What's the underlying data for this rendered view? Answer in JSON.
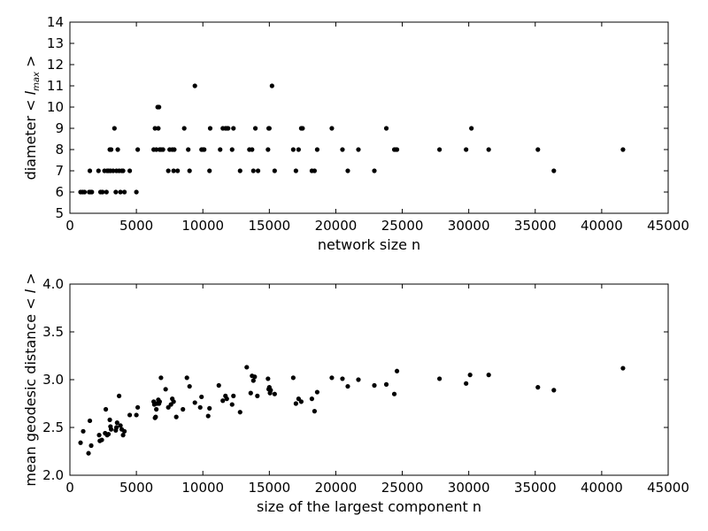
{
  "chart_data": [
    {
      "type": "scatter",
      "xlabel": "network size n",
      "ylabel_prefix": "diameter",
      "ylabel_symbol": "< l",
      "ylabel_subscript": "max",
      "ylabel_suffix": " >",
      "xlim": [
        0,
        45000
      ],
      "ylim": [
        5,
        14
      ],
      "xticks": [
        0,
        5000,
        10000,
        15000,
        20000,
        25000,
        30000,
        35000,
        40000,
        45000
      ],
      "yticks": [
        5,
        6,
        7,
        8,
        9,
        10,
        11,
        12,
        13,
        14
      ],
      "ytick_decimals": 0,
      "grid": false,
      "series": [
        {
          "color": "#000000",
          "points": [
            [
              800,
              6
            ],
            [
              950,
              6
            ],
            [
              1100,
              6
            ],
            [
              1450,
              6
            ],
            [
              1550,
              6
            ],
            [
              1650,
              6
            ],
            [
              1500,
              7
            ],
            [
              2150,
              7
            ],
            [
              2300,
              6
            ],
            [
              2450,
              6
            ],
            [
              2600,
              7
            ],
            [
              2750,
              6
            ],
            [
              2800,
              7
            ],
            [
              2900,
              7
            ],
            [
              3000,
              8
            ],
            [
              3050,
              7
            ],
            [
              3100,
              8
            ],
            [
              3250,
              7
            ],
            [
              3350,
              9
            ],
            [
              3450,
              6
            ],
            [
              3500,
              7
            ],
            [
              3600,
              8
            ],
            [
              3700,
              7
            ],
            [
              3800,
              6
            ],
            [
              3900,
              7
            ],
            [
              4000,
              7
            ],
            [
              4100,
              6
            ],
            [
              4500,
              7
            ],
            [
              5000,
              6
            ],
            [
              5100,
              8
            ],
            [
              6300,
              8
            ],
            [
              6400,
              9
            ],
            [
              6500,
              8
            ],
            [
              6600,
              10
            ],
            [
              6650,
              9
            ],
            [
              6700,
              10
            ],
            [
              6750,
              8
            ],
            [
              6850,
              8
            ],
            [
              7000,
              8
            ],
            [
              7400,
              7
            ],
            [
              7500,
              8
            ],
            [
              7700,
              8
            ],
            [
              7800,
              7
            ],
            [
              7850,
              8
            ],
            [
              8100,
              7
            ],
            [
              8600,
              9
            ],
            [
              8900,
              8
            ],
            [
              9000,
              7
            ],
            [
              9400,
              11
            ],
            [
              9900,
              8
            ],
            [
              10000,
              8
            ],
            [
              10100,
              8
            ],
            [
              10500,
              7
            ],
            [
              10550,
              9
            ],
            [
              11300,
              8
            ],
            [
              11500,
              9
            ],
            [
              11700,
              9
            ],
            [
              11800,
              9
            ],
            [
              11900,
              9
            ],
            [
              12200,
              8
            ],
            [
              12300,
              9
            ],
            [
              12800,
              7
            ],
            [
              13500,
              8
            ],
            [
              13700,
              8
            ],
            [
              13800,
              7
            ],
            [
              13950,
              9
            ],
            [
              14150,
              7
            ],
            [
              14900,
              8
            ],
            [
              14950,
              9
            ],
            [
              15000,
              9
            ],
            [
              15200,
              11
            ],
            [
              15400,
              7
            ],
            [
              16800,
              8
            ],
            [
              17000,
              7
            ],
            [
              17200,
              8
            ],
            [
              17400,
              9
            ],
            [
              17500,
              9
            ],
            [
              18200,
              7
            ],
            [
              18400,
              7
            ],
            [
              18600,
              8
            ],
            [
              19700,
              9
            ],
            [
              20500,
              8
            ],
            [
              20900,
              7
            ],
            [
              21700,
              8
            ],
            [
              22900,
              7
            ],
            [
              23800,
              9
            ],
            [
              24400,
              8
            ],
            [
              24500,
              8
            ],
            [
              24600,
              8
            ],
            [
              27800,
              8
            ],
            [
              29800,
              8
            ],
            [
              30200,
              9
            ],
            [
              31500,
              8
            ],
            [
              35200,
              8
            ],
            [
              36400,
              7
            ],
            [
              41600,
              8
            ]
          ]
        }
      ]
    },
    {
      "type": "scatter",
      "xlabel": "size of the largest component n",
      "ylabel_prefix": "mean geodesic distance",
      "ylabel_symbol": "< l >",
      "xlim": [
        0,
        45000
      ],
      "ylim": [
        2.0,
        4.0
      ],
      "xticks": [
        0,
        5000,
        10000,
        15000,
        20000,
        25000,
        30000,
        35000,
        40000,
        45000
      ],
      "yticks": [
        2.0,
        2.5,
        3.0,
        3.5,
        4.0
      ],
      "ytick_decimals": 1,
      "grid": false,
      "series": [
        {
          "color": "#000000",
          "points": [
            [
              800,
              2.34
            ],
            [
              1000,
              2.46
            ],
            [
              1400,
              2.23
            ],
            [
              1500,
              2.57
            ],
            [
              1600,
              2.31
            ],
            [
              2200,
              2.42
            ],
            [
              2250,
              2.36
            ],
            [
              2400,
              2.37
            ],
            [
              2650,
              2.44
            ],
            [
              2700,
              2.69
            ],
            [
              2800,
              2.42
            ],
            [
              2900,
              2.43
            ],
            [
              3000,
              2.58
            ],
            [
              3050,
              2.51
            ],
            [
              3100,
              2.48
            ],
            [
              3450,
              2.47
            ],
            [
              3500,
              2.5
            ],
            [
              3550,
              2.55
            ],
            [
              3700,
              2.83
            ],
            [
              3800,
              2.52
            ],
            [
              3900,
              2.48
            ],
            [
              4000,
              2.42
            ],
            [
              4100,
              2.46
            ],
            [
              4500,
              2.63
            ],
            [
              5000,
              2.63
            ],
            [
              5100,
              2.71
            ],
            [
              6300,
              2.77
            ],
            [
              6350,
              2.74
            ],
            [
              6400,
              2.6
            ],
            [
              6450,
              2.61
            ],
            [
              6500,
              2.69
            ],
            [
              6550,
              2.75
            ],
            [
              6650,
              2.79
            ],
            [
              6700,
              2.75
            ],
            [
              6750,
              2.77
            ],
            [
              6850,
              3.02
            ],
            [
              7200,
              2.9
            ],
            [
              7400,
              2.71
            ],
            [
              7600,
              2.74
            ],
            [
              7700,
              2.8
            ],
            [
              7800,
              2.77
            ],
            [
              8000,
              2.61
            ],
            [
              8500,
              2.69
            ],
            [
              8800,
              3.02
            ],
            [
              9000,
              2.93
            ],
            [
              9400,
              2.76
            ],
            [
              9800,
              2.71
            ],
            [
              9900,
              2.82
            ],
            [
              10400,
              2.62
            ],
            [
              10500,
              2.7
            ],
            [
              11200,
              2.94
            ],
            [
              11500,
              2.78
            ],
            [
              11700,
              2.83
            ],
            [
              11800,
              2.8
            ],
            [
              12200,
              2.74
            ],
            [
              12300,
              2.83
            ],
            [
              12800,
              2.66
            ],
            [
              13300,
              3.13
            ],
            [
              13600,
              2.86
            ],
            [
              13700,
              3.04
            ],
            [
              13800,
              2.99
            ],
            [
              13900,
              3.03
            ],
            [
              14100,
              2.83
            ],
            [
              14900,
              3.01
            ],
            [
              14950,
              2.9
            ],
            [
              15000,
              2.92
            ],
            [
              15050,
              2.86
            ],
            [
              15100,
              2.89
            ],
            [
              15400,
              2.85
            ],
            [
              16800,
              3.02
            ],
            [
              17000,
              2.75
            ],
            [
              17200,
              2.8
            ],
            [
              17400,
              2.77
            ],
            [
              18200,
              2.8
            ],
            [
              18400,
              2.67
            ],
            [
              18600,
              2.87
            ],
            [
              19700,
              3.02
            ],
            [
              20500,
              3.01
            ],
            [
              20900,
              2.93
            ],
            [
              21700,
              3.0
            ],
            [
              22900,
              2.94
            ],
            [
              23800,
              2.95
            ],
            [
              24400,
              2.85
            ],
            [
              24600,
              3.09
            ],
            [
              27800,
              3.01
            ],
            [
              29800,
              2.96
            ],
            [
              30100,
              3.05
            ],
            [
              31500,
              3.05
            ],
            [
              35200,
              2.92
            ],
            [
              36400,
              2.89
            ],
            [
              41600,
              3.12
            ]
          ]
        }
      ]
    }
  ]
}
